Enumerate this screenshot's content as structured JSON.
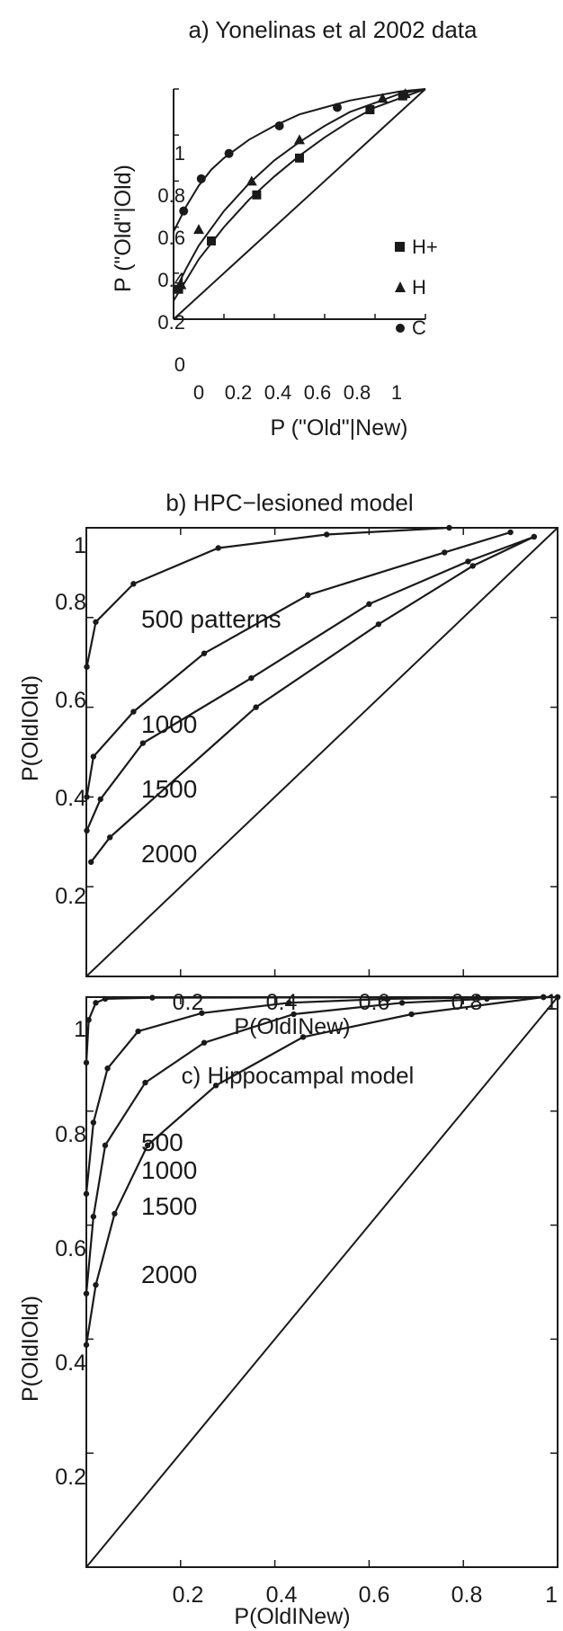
{
  "chart_data": [
    {
      "type": "scatter",
      "title": "a) Yonelinas et al 2002  data",
      "xlabel": "P (\"Old\"|New)",
      "ylabel": "P (\"Old\"|Old)",
      "xlim": [
        0,
        1
      ],
      "ylim": [
        0,
        1
      ],
      "xticks": [
        "0",
        "0.2",
        "0.4",
        "0.6",
        "0.8",
        "1"
      ],
      "yticks": [
        "0",
        "0.2",
        "0.4",
        "0.6",
        "0.8",
        "1"
      ],
      "legend_position": "center-right",
      "series": [
        {
          "name": "H+",
          "marker": "square",
          "x": [
            0.02,
            0.15,
            0.33,
            0.5,
            0.78,
            0.91
          ],
          "y": [
            0.13,
            0.34,
            0.54,
            0.7,
            0.91,
            0.97
          ],
          "fit": [
            [
              0,
              0.08
            ],
            [
              0.05,
              0.17
            ],
            [
              0.1,
              0.26
            ],
            [
              0.2,
              0.4
            ],
            [
              0.3,
              0.52
            ],
            [
              0.4,
              0.62
            ],
            [
              0.5,
              0.71
            ],
            [
              0.6,
              0.79
            ],
            [
              0.7,
              0.86
            ],
            [
              0.8,
              0.92
            ],
            [
              0.9,
              0.96
            ],
            [
              1,
              1
            ]
          ]
        },
        {
          "name": "H",
          "marker": "triangle",
          "x": [
            0.03,
            0.1,
            0.31,
            0.5,
            0.83,
            0.92
          ],
          "y": [
            0.15,
            0.39,
            0.6,
            0.78,
            0.96,
            0.98
          ],
          "fit": [
            [
              0,
              0.11
            ],
            [
              0.05,
              0.22
            ],
            [
              0.1,
              0.32
            ],
            [
              0.2,
              0.47
            ],
            [
              0.3,
              0.59
            ],
            [
              0.4,
              0.69
            ],
            [
              0.5,
              0.77
            ],
            [
              0.6,
              0.84
            ],
            [
              0.7,
              0.9
            ],
            [
              0.8,
              0.94
            ],
            [
              0.9,
              0.98
            ],
            [
              1,
              1
            ]
          ]
        },
        {
          "name": "C",
          "marker": "circle",
          "x": [
            0.04,
            0.11,
            0.22,
            0.42,
            0.65,
            0.91
          ],
          "y": [
            0.47,
            0.61,
            0.72,
            0.84,
            0.92,
            0.97
          ],
          "fit": [
            [
              0,
              0.38
            ],
            [
              0.05,
              0.49
            ],
            [
              0.1,
              0.58
            ],
            [
              0.15,
              0.65
            ],
            [
              0.2,
              0.7
            ],
            [
              0.3,
              0.78
            ],
            [
              0.4,
              0.84
            ],
            [
              0.5,
              0.89
            ],
            [
              0.6,
              0.92
            ],
            [
              0.7,
              0.95
            ],
            [
              0.8,
              0.97
            ],
            [
              0.9,
              0.99
            ],
            [
              1,
              1
            ]
          ]
        }
      ]
    },
    {
      "type": "line",
      "title": "b) HPC−lesioned model",
      "xlabel": "P(OldINew)",
      "ylabel": "P(OldIOld)",
      "xlim": [
        0,
        1
      ],
      "ylim": [
        0,
        1
      ],
      "xticks": [
        "0.2",
        "0.4",
        "0.6",
        "0.8",
        "1"
      ],
      "yticks": [
        "0.2",
        "0.4",
        "0.6",
        "0.8",
        "1"
      ],
      "series": [
        {
          "label": "500 patterns",
          "x": [
            0.001,
            0.02,
            0.1,
            0.28,
            0.51,
            0.77
          ],
          "y": [
            0.69,
            0.79,
            0.875,
            0.955,
            0.985,
            1.0
          ]
        },
        {
          "label": "1000",
          "x": [
            0.001,
            0.015,
            0.1,
            0.25,
            0.47,
            0.76,
            0.9
          ],
          "y": [
            0.4,
            0.49,
            0.59,
            0.72,
            0.85,
            0.945,
            0.99
          ]
        },
        {
          "label": "1500",
          "x": [
            0.001,
            0.03,
            0.12,
            0.35,
            0.6,
            0.81,
            0.95
          ],
          "y": [
            0.325,
            0.395,
            0.52,
            0.665,
            0.83,
            0.925,
            0.98
          ]
        },
        {
          "label": "2000",
          "x": [
            0.01,
            0.05,
            0.36,
            0.62,
            0.82,
            0.95
          ],
          "y": [
            0.255,
            0.31,
            0.6,
            0.785,
            0.915,
            0.98
          ]
        }
      ]
    },
    {
      "type": "line",
      "title": "c) Hippocampal model",
      "xlabel": "P(OldINew)",
      "ylabel": "P(OldIOld)",
      "xlim": [
        0,
        1
      ],
      "ylim": [
        0,
        1
      ],
      "xticks": [
        "0.2",
        "0.4",
        "0.6",
        "0.8",
        "1"
      ],
      "yticks": [
        "0.2",
        "0.4",
        "0.6",
        "0.8",
        "1"
      ],
      "series": [
        {
          "label": "500",
          "x": [
            0.0,
            0.005,
            0.02,
            0.04,
            0.14,
            1.0
          ],
          "y": [
            0.885,
            0.96,
            0.99,
            0.997,
            0.999,
            1.0
          ]
        },
        {
          "label": "1000",
          "x": [
            0.0,
            0.015,
            0.045,
            0.11,
            0.245,
            0.43,
            0.64,
            0.83,
            0.97,
            1.0
          ],
          "y": [
            0.655,
            0.78,
            0.875,
            0.94,
            0.972,
            0.99,
            0.997,
            0.999,
            1.0,
            1.0
          ]
        },
        {
          "label": "1500",
          "x": [
            0.0,
            0.015,
            0.04,
            0.125,
            0.25,
            0.44,
            0.67,
            0.85,
            0.97
          ],
          "y": [
            0.48,
            0.615,
            0.74,
            0.85,
            0.92,
            0.97,
            0.99,
            0.997,
            1.0
          ]
        },
        {
          "label": "2000",
          "x": [
            0.0,
            0.02,
            0.06,
            0.13,
            0.275,
            0.46,
            0.69,
            0.97
          ],
          "y": [
            0.39,
            0.495,
            0.62,
            0.74,
            0.845,
            0.93,
            0.97,
            1.0
          ]
        }
      ]
    }
  ]
}
